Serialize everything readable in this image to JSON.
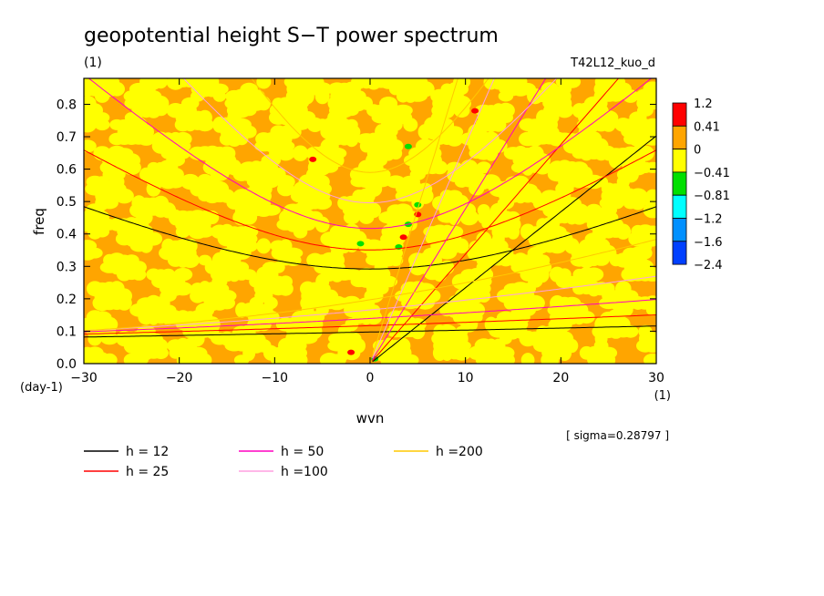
{
  "title": "geopotential height S−T power spectrum",
  "subtitle_left": "(1)",
  "subtitle_right": "T42L12_kuo_d",
  "sigma_note": "[ sigma=0.28797 ]",
  "chart_data": {
    "type": "heatmap",
    "title": "geopotential height S−T power spectrum",
    "xlabel": "wvn",
    "ylabel": "freq",
    "x_unit": "(1)",
    "y_unit": "(day-1)",
    "xlim": [
      -30,
      30
    ],
    "ylim": [
      0,
      0.88
    ],
    "x_ticks": [
      -30,
      -20,
      -10,
      0,
      10,
      20,
      30
    ],
    "x_tick_labels": [
      "−30",
      "−20",
      "−10",
      "0",
      "10",
      "20",
      "30"
    ],
    "y_ticks": [
      0,
      0.1,
      0.2,
      0.3,
      0.4,
      0.5,
      0.6,
      0.7,
      0.8
    ],
    "y_tick_labels": [
      "0.0",
      "0.1",
      "0.2",
      "0.3",
      "0.4",
      "0.5",
      "0.6",
      "0.7",
      "0.8"
    ],
    "colorbar": {
      "labels": [
        "1.2",
        "0.41",
        "0",
        "−0.41",
        "−0.81",
        "−1.2",
        "−1.6",
        "−2.4"
      ],
      "colors": [
        "#ff0000",
        "#ffa500",
        "#ffff00",
        "#00e000",
        "#00ffff",
        "#0090ff",
        "#0040ff"
      ]
    },
    "field_description_colors": {
      "dominant": [
        "#ffa500",
        "#ffff00"
      ],
      "sparse_positive": "#ff0000",
      "sparse_negative": "#00e000"
    },
    "dispersion_curves": [
      {
        "name": "h = 12",
        "color": "#000000"
      },
      {
        "name": "h = 25",
        "color": "#ff0000"
      },
      {
        "name": "h = 50",
        "color": "#ff00c0"
      },
      {
        "name": "h =100",
        "color": "#ffa0e0"
      },
      {
        "name": "h =200",
        "color": "#ffc800"
      }
    ],
    "legend_placement": "bottom"
  }
}
